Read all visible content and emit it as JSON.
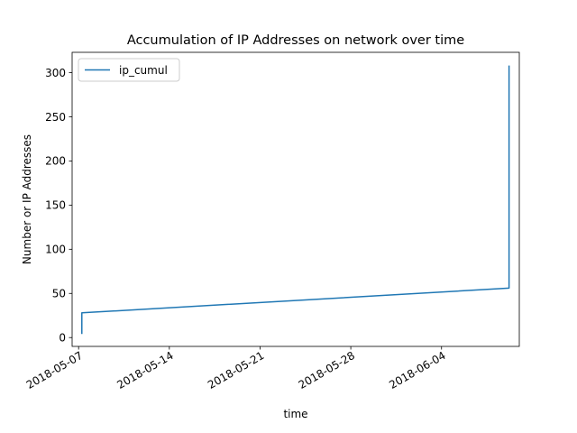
{
  "chart_data": {
    "type": "line",
    "title": "Accumulation of IP Addresses on network over time",
    "xlabel": "time",
    "ylabel": "Number or IP Addresses",
    "x_axis": {
      "scale": "date",
      "range": [
        "2018-05-06T12:00",
        "2018-06-10T00:00"
      ],
      "tick_values": [
        "2018-05-07",
        "2018-05-14",
        "2018-05-21",
        "2018-05-28",
        "2018-06-04"
      ],
      "tick_labels": [
        "2018-05-07",
        "2018-05-14",
        "2018-05-21",
        "2018-05-28",
        "2018-06-04"
      ],
      "tick_label_rotation": "30 degrees, right-aligned"
    },
    "y_axis": {
      "range": [
        -10,
        323
      ],
      "tick_values": [
        0,
        50,
        100,
        150,
        200,
        250,
        300
      ],
      "tick_labels": [
        "0",
        "50",
        "100",
        "150",
        "200",
        "250",
        "300"
      ]
    },
    "grid": false,
    "legend": {
      "placement": "upper-left"
    },
    "series": [
      {
        "name": "ip_cumul",
        "color": "#1f77b4",
        "points": [
          {
            "x": "2018-05-07T06:00",
            "y": 4
          },
          {
            "x": "2018-05-07T06:00",
            "y": 28
          },
          {
            "x": "2018-06-09T05:00",
            "y": 56
          },
          {
            "x": "2018-06-09T05:00",
            "y": 308
          }
        ]
      }
    ]
  }
}
